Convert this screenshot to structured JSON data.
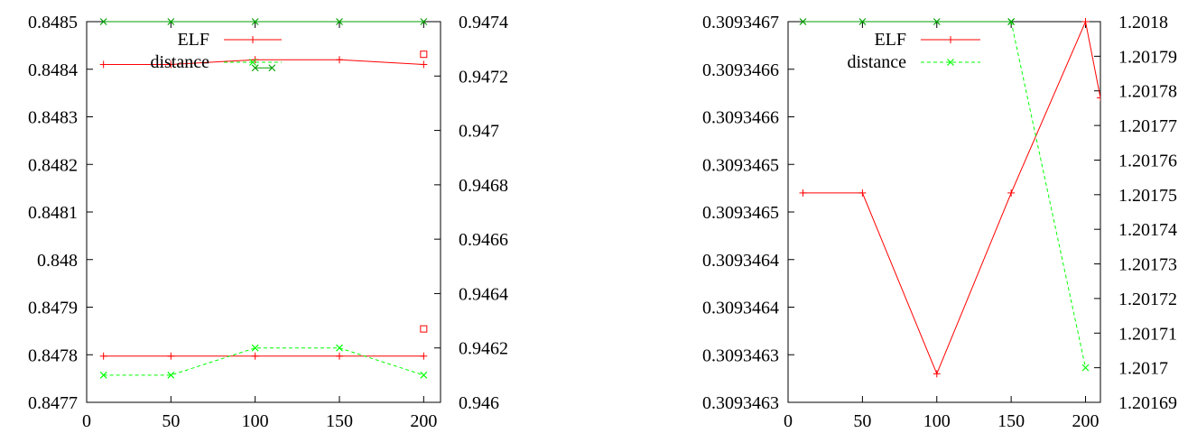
{
  "chart_data": [
    {
      "type": "line",
      "xlabel": "",
      "ylabel": "",
      "y2label": "",
      "xlim": [
        0,
        210
      ],
      "ylim": [
        0.8477,
        0.8485
      ],
      "y2lim": [
        0.946,
        0.9474
      ],
      "x_ticks": [
        "0",
        "50",
        "100",
        "150",
        "200"
      ],
      "y_ticks": [
        "0.8477",
        "0.8478",
        "0.8479",
        "0.848",
        "0.8481",
        "0.8482",
        "0.8483",
        "0.8484",
        "0.8485"
      ],
      "y2_ticks": [
        "0.946",
        "0.9462",
        "0.9464",
        "0.9466",
        "0.9468",
        "0.947",
        "0.9472",
        "0.9474"
      ],
      "grid": false,
      "legend_position": "top",
      "series": [
        {
          "name": "ELF",
          "axis": "left",
          "color": "#ff0000",
          "marker": "plus",
          "dash": false,
          "x": [
            10,
            50,
            100,
            150,
            200
          ],
          "values": [
            0.84841,
            0.84841,
            0.84842,
            0.84842,
            0.84841
          ]
        },
        {
          "name": "",
          "axis": "right",
          "color": "#ff0000",
          "marker": "plus",
          "dash": false,
          "x": [
            10,
            50,
            100,
            150,
            200
          ],
          "values": [
            0.94617,
            0.94617,
            0.94617,
            0.94617,
            0.94617
          ]
        },
        {
          "name": "distance",
          "axis": "right",
          "color": "#00ff00",
          "marker": "cross",
          "dash": true,
          "x": [
            10,
            50,
            100,
            150,
            200
          ],
          "values": [
            0.9461,
            0.9461,
            0.9462,
            0.9462,
            0.9461
          ]
        },
        {
          "name": "",
          "axis": "right",
          "color": "#00a000",
          "marker": "cross",
          "dash": false,
          "x": [
            10,
            50,
            100,
            150,
            200
          ],
          "values": [
            0.9474,
            0.9474,
            0.9474,
            0.9474,
            0.9474
          ]
        },
        {
          "name": "",
          "axis": "right",
          "color": "#00a000",
          "marker": "cross",
          "dash": false,
          "x": [
            100,
            110
          ],
          "values": [
            0.94723,
            0.94723
          ]
        }
      ],
      "extra_markers": [
        {
          "x": 200,
          "y": 0.94728,
          "axis": "right",
          "color": "#ff0000",
          "marker": "square"
        },
        {
          "x": 200,
          "y": 0.94627,
          "axis": "right",
          "color": "#ff0000",
          "marker": "square"
        }
      ]
    },
    {
      "type": "line",
      "xlabel": "",
      "ylabel": "",
      "y2label": "",
      "xlim": [
        0,
        210
      ],
      "ylim": [
        0.3093463,
        0.3093467
      ],
      "y2lim": [
        1.20169,
        1.2018
      ],
      "x_ticks": [
        "0",
        "50",
        "100",
        "150",
        "200"
      ],
      "y_ticks": [
        "0.3093463",
        "0.3093463",
        "0.3093464",
        "0.3093464",
        "0.3093465",
        "0.3093465",
        "0.3093466",
        "0.3093466",
        "0.3093467"
      ],
      "y2_ticks": [
        "1.20169",
        "1.2017",
        "1.20171",
        "1.20172",
        "1.20173",
        "1.20174",
        "1.20175",
        "1.20176",
        "1.20177",
        "1.20178",
        "1.20179",
        "1.2018"
      ],
      "grid": false,
      "legend_position": "top",
      "series": [
        {
          "name": "ELF",
          "axis": "left",
          "color": "#ff0000",
          "marker": "plus",
          "dash": false,
          "x": [
            10,
            50,
            100,
            150,
            200,
            210
          ],
          "values": [
            0.30934652,
            0.30934652,
            0.30934633,
            0.30934652,
            0.3093467,
            0.30934662
          ]
        },
        {
          "name": "distance",
          "axis": "right",
          "color": "#00ff00",
          "marker": "cross",
          "dash": true,
          "x": [
            150,
            200
          ],
          "values": [
            1.2018,
            1.2017
          ]
        },
        {
          "name": "",
          "axis": "right",
          "color": "#00a000",
          "marker": "cross",
          "dash": false,
          "x": [
            10,
            50,
            100,
            150
          ],
          "values": [
            1.2018,
            1.2018,
            1.2018,
            1.2018
          ]
        }
      ],
      "extra_markers": []
    }
  ]
}
